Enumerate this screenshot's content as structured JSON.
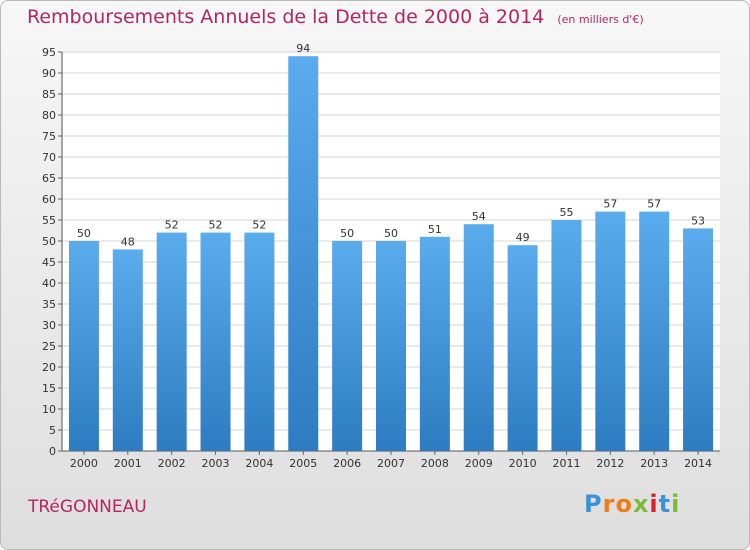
{
  "title": "Remboursements Annuels de la Dette de 2000 à 2014",
  "unit": "(en milliers d'€)",
  "town": "TRéGONNEAU",
  "logo": {
    "letters": [
      "P",
      "r",
      "o",
      "x",
      "i",
      "t",
      "i"
    ],
    "colors": [
      "#3a93d6",
      "#f27d17",
      "#f27d17",
      "#7fb93a",
      "#d6202c",
      "#3a93d6",
      "#7fb93a"
    ]
  },
  "colors": {
    "bar_top": "#5aaced",
    "bar_bottom": "#2d7cc1",
    "title": "#b5265e",
    "grid": "#d4d4d4"
  },
  "chart_data": {
    "type": "bar",
    "title": "Remboursements Annuels de la Dette de 2000 à 2014",
    "subtitle": "(en milliers d'€)",
    "xlabel": "",
    "ylabel": "",
    "categories": [
      "2000",
      "2001",
      "2002",
      "2003",
      "2004",
      "2005",
      "2006",
      "2007",
      "2008",
      "2009",
      "2010",
      "2011",
      "2012",
      "2013",
      "2014"
    ],
    "values": [
      50,
      48,
      52,
      52,
      52,
      94,
      50,
      50,
      51,
      54,
      49,
      55,
      57,
      57,
      53
    ],
    "ylim": [
      0,
      95
    ],
    "yticks": [
      0,
      5,
      10,
      15,
      20,
      25,
      30,
      35,
      40,
      45,
      50,
      55,
      60,
      65,
      70,
      75,
      80,
      85,
      90,
      95
    ],
    "grid": true
  }
}
